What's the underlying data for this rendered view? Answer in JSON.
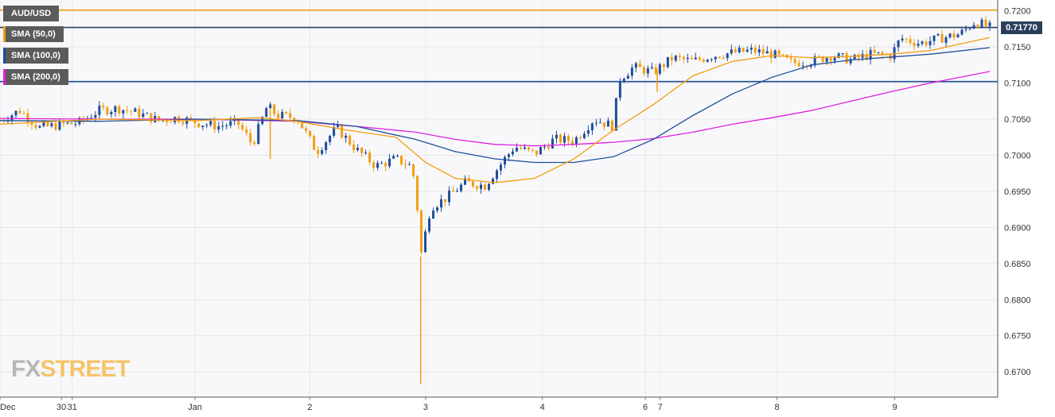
{
  "chart_data": {
    "type": "candlestick",
    "symbol": "AUD/USD",
    "legend": [
      {
        "label": "AUD/USD",
        "color": "#5b5b5b"
      },
      {
        "label": "SMA (50,0)",
        "color": "#f39c12"
      },
      {
        "label": "SMA (100,0)",
        "color": "#1f4e9a"
      },
      {
        "label": "SMA (200,0)",
        "color": "#e01ee0"
      }
    ],
    "ylim": [
      0.6665,
      0.7215
    ],
    "y_ticks": [
      "0.7200",
      "0.7150",
      "0.7100",
      "0.7050",
      "0.7000",
      "0.6950",
      "0.6900",
      "0.6850",
      "0.6800",
      "0.6750",
      "0.6700"
    ],
    "x_ticks": [
      {
        "label": "Dec",
        "pos": 0.0
      },
      {
        "label": "30",
        "pos": 0.062
      },
      {
        "label": "31",
        "pos": 0.073
      },
      {
        "label": "Jan",
        "pos": 0.197
      },
      {
        "label": "2",
        "pos": 0.313
      },
      {
        "label": "3",
        "pos": 0.43
      },
      {
        "label": "4",
        "pos": 0.548
      },
      {
        "label": "6",
        "pos": 0.652
      },
      {
        "label": "7",
        "pos": 0.667
      },
      {
        "label": "8",
        "pos": 0.785
      },
      {
        "label": "9",
        "pos": 0.904
      }
    ],
    "last_price": "0.71770",
    "last_price_value": 0.7177,
    "horizontal_levels": [
      {
        "value": 0.7201,
        "color": "#f39c12"
      },
      {
        "value": 0.7177,
        "color": "#2b3f5c"
      },
      {
        "value": 0.7102,
        "color": "#1f4e9a"
      }
    ],
    "price_path": [
      [
        0.0,
        0.7048
      ],
      [
        0.02,
        0.7062
      ],
      [
        0.04,
        0.7038
      ],
      [
        0.06,
        0.7042
      ],
      [
        0.08,
        0.7045
      ],
      [
        0.1,
        0.7062
      ],
      [
        0.12,
        0.7065
      ],
      [
        0.14,
        0.7058
      ],
      [
        0.16,
        0.7048
      ],
      [
        0.18,
        0.7052
      ],
      [
        0.2,
        0.7045
      ],
      [
        0.22,
        0.704
      ],
      [
        0.24,
        0.7045
      ],
      [
        0.255,
        0.7015
      ],
      [
        0.27,
        0.7068
      ],
      [
        0.28,
        0.7055
      ],
      [
        0.3,
        0.7052
      ],
      [
        0.32,
        0.7005
      ],
      [
        0.34,
        0.7038
      ],
      [
        0.36,
        0.7008
      ],
      [
        0.38,
        0.6985
      ],
      [
        0.4,
        0.6995
      ],
      [
        0.415,
        0.6985
      ],
      [
        0.42,
        0.696
      ],
      [
        0.425,
        0.686
      ],
      [
        0.435,
        0.6928
      ],
      [
        0.45,
        0.694
      ],
      [
        0.47,
        0.6962
      ],
      [
        0.49,
        0.6958
      ],
      [
        0.51,
        0.6995
      ],
      [
        0.52,
        0.7012
      ],
      [
        0.54,
        0.7002
      ],
      [
        0.56,
        0.7022
      ],
      [
        0.58,
        0.702
      ],
      [
        0.6,
        0.705
      ],
      [
        0.62,
        0.704
      ],
      [
        0.625,
        0.7105
      ],
      [
        0.64,
        0.7122
      ],
      [
        0.66,
        0.7115
      ],
      [
        0.68,
        0.7135
      ],
      [
        0.7,
        0.713
      ],
      [
        0.72,
        0.7138
      ],
      [
        0.74,
        0.7142
      ],
      [
        0.76,
        0.7145
      ],
      [
        0.78,
        0.714
      ],
      [
        0.8,
        0.7128
      ],
      [
        0.82,
        0.713
      ],
      [
        0.84,
        0.7138
      ],
      [
        0.86,
        0.7132
      ],
      [
        0.88,
        0.714
      ],
      [
        0.9,
        0.7138
      ],
      [
        0.91,
        0.7162
      ],
      [
        0.93,
        0.7155
      ],
      [
        0.95,
        0.7162
      ],
      [
        0.97,
        0.7168
      ],
      [
        0.985,
        0.7185
      ],
      [
        1.0,
        0.7177
      ]
    ],
    "spikes": [
      {
        "x": 0.425,
        "low": 0.6683
      },
      {
        "x": 0.273,
        "low": 0.6995
      },
      {
        "x": 0.664,
        "low": 0.7088
      }
    ],
    "sma50": [
      [
        0.0,
        0.7043
      ],
      [
        0.1,
        0.705
      ],
      [
        0.2,
        0.7048
      ],
      [
        0.26,
        0.7052
      ],
      [
        0.3,
        0.7047
      ],
      [
        0.35,
        0.7035
      ],
      [
        0.4,
        0.7025
      ],
      [
        0.43,
        0.699
      ],
      [
        0.46,
        0.6968
      ],
      [
        0.5,
        0.6962
      ],
      [
        0.54,
        0.6968
      ],
      [
        0.58,
        0.6995
      ],
      [
        0.62,
        0.7035
      ],
      [
        0.66,
        0.707
      ],
      [
        0.7,
        0.711
      ],
      [
        0.74,
        0.713
      ],
      [
        0.78,
        0.7138
      ],
      [
        0.82,
        0.7135
      ],
      [
        0.86,
        0.7137
      ],
      [
        0.9,
        0.714
      ],
      [
        0.94,
        0.7145
      ],
      [
        1.0,
        0.7163
      ]
    ],
    "sma100": [
      [
        0.0,
        0.7048
      ],
      [
        0.1,
        0.7047
      ],
      [
        0.2,
        0.705
      ],
      [
        0.3,
        0.7048
      ],
      [
        0.36,
        0.704
      ],
      [
        0.42,
        0.7022
      ],
      [
        0.46,
        0.7005
      ],
      [
        0.5,
        0.6995
      ],
      [
        0.54,
        0.699
      ],
      [
        0.58,
        0.699
      ],
      [
        0.62,
        0.6998
      ],
      [
        0.66,
        0.7022
      ],
      [
        0.7,
        0.7055
      ],
      [
        0.74,
        0.7085
      ],
      [
        0.78,
        0.7108
      ],
      [
        0.82,
        0.7125
      ],
      [
        0.86,
        0.7132
      ],
      [
        0.9,
        0.7136
      ],
      [
        0.94,
        0.714
      ],
      [
        1.0,
        0.7149
      ]
    ],
    "sma200": [
      [
        0.0,
        0.7051
      ],
      [
        0.1,
        0.705
      ],
      [
        0.2,
        0.705
      ],
      [
        0.3,
        0.7047
      ],
      [
        0.36,
        0.704
      ],
      [
        0.42,
        0.7032
      ],
      [
        0.46,
        0.7022
      ],
      [
        0.5,
        0.7015
      ],
      [
        0.54,
        0.7013
      ],
      [
        0.58,
        0.7015
      ],
      [
        0.62,
        0.7018
      ],
      [
        0.66,
        0.7023
      ],
      [
        0.7,
        0.7032
      ],
      [
        0.74,
        0.7043
      ],
      [
        0.78,
        0.7052
      ],
      [
        0.82,
        0.7062
      ],
      [
        0.86,
        0.7075
      ],
      [
        0.9,
        0.7088
      ],
      [
        0.94,
        0.71
      ],
      [
        1.0,
        0.7116
      ]
    ]
  },
  "watermark": {
    "part1": "FX",
    "part2": "STREET"
  }
}
